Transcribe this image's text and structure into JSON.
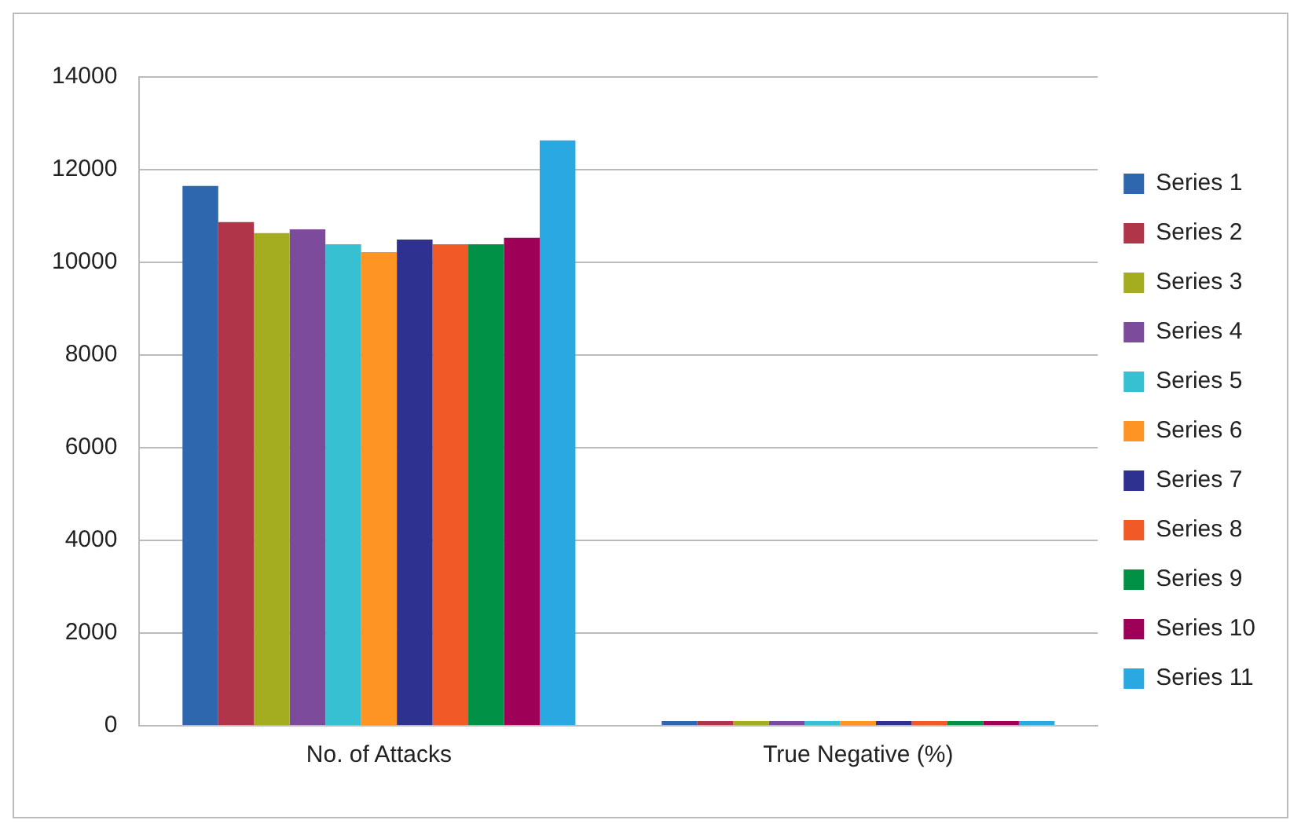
{
  "chart_data": {
    "type": "bar",
    "categories": [
      "No. of Attacks",
      "True Negative (%)"
    ],
    "series": [
      {
        "name": "Series 1",
        "color": "#2e67ad",
        "values": [
          11650,
          100
        ]
      },
      {
        "name": "Series 2",
        "color": "#b03548",
        "values": [
          10870,
          100
        ]
      },
      {
        "name": "Series 3",
        "color": "#a4ac20",
        "values": [
          10630,
          100
        ]
      },
      {
        "name": "Series 4",
        "color": "#7c4b9c",
        "values": [
          10710,
          100
        ]
      },
      {
        "name": "Series 5",
        "color": "#37bfd2",
        "values": [
          10390,
          100
        ]
      },
      {
        "name": "Series 6",
        "color": "#fd9424",
        "values": [
          10220,
          100
        ]
      },
      {
        "name": "Series 7",
        "color": "#2f3190",
        "values": [
          10490,
          100
        ]
      },
      {
        "name": "Series 8",
        "color": "#f15a27",
        "values": [
          10390,
          100
        ]
      },
      {
        "name": "Series 9",
        "color": "#009146",
        "values": [
          10390,
          100
        ]
      },
      {
        "name": "Series 10",
        "color": "#9e0058",
        "values": [
          10530,
          100
        ]
      },
      {
        "name": "Series 11",
        "color": "#29a8e1",
        "values": [
          12630,
          100
        ]
      }
    ],
    "ylim": [
      0,
      14000
    ],
    "yticks": [
      0,
      2000,
      4000,
      6000,
      8000,
      10000,
      12000,
      14000
    ],
    "grid": "y",
    "legend": "right"
  }
}
